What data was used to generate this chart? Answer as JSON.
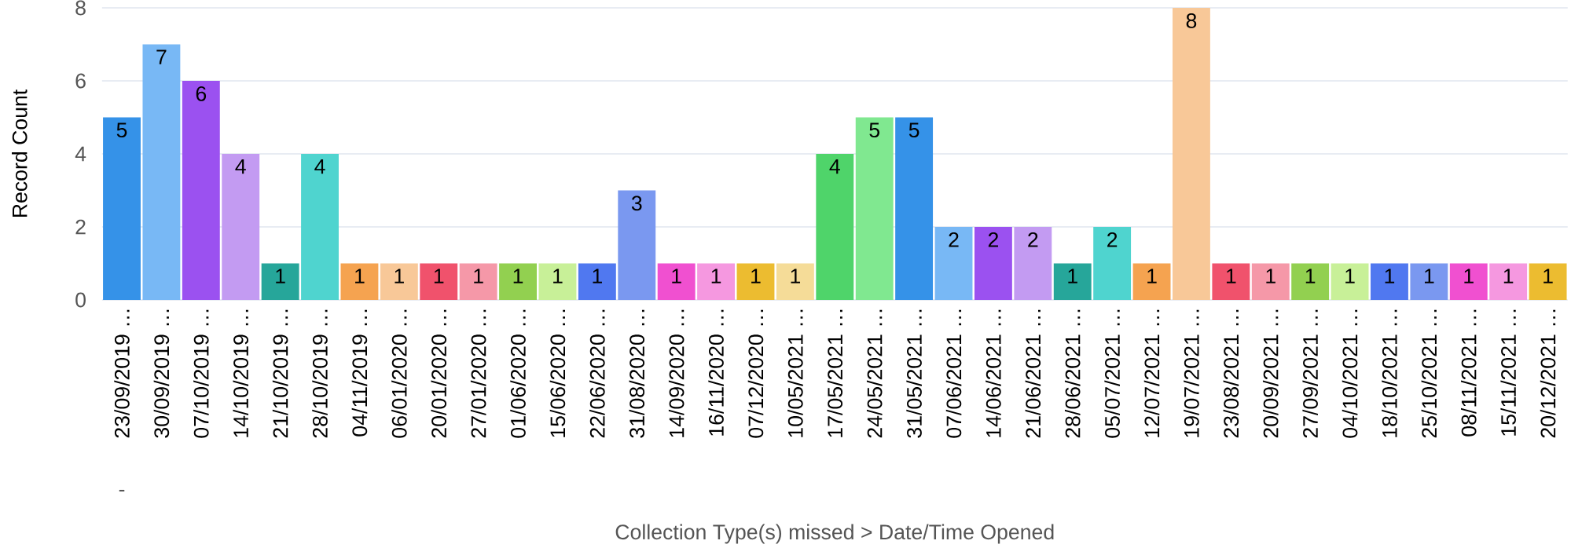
{
  "chart_data": {
    "type": "bar",
    "xlabel": "Collection Type(s) missed  >  Date/Time Opened",
    "ylabel": "Record Count",
    "categories": [
      "23/09/2019 …",
      "30/09/2019 …",
      "07/10/2019 …",
      "14/10/2019 …",
      "21/10/2019 …",
      "28/10/2019 …",
      "04/11/2019 …",
      "06/01/2020 …",
      "20/01/2020 …",
      "27/01/2020 …",
      "01/06/2020 …",
      "15/06/2020 …",
      "22/06/2020 …",
      "31/08/2020 …",
      "14/09/2020 …",
      "16/11/2020 …",
      "07/12/2020 …",
      "10/05/2021 …",
      "17/05/2021 …",
      "24/05/2021 …",
      "31/05/2021 …",
      "07/06/2021 …",
      "14/06/2021 …",
      "21/06/2021 …",
      "28/06/2021 …",
      "05/07/2021 …",
      "12/07/2021 …",
      "19/07/2021 …",
      "23/08/2021 …",
      "20/09/2021 …",
      "27/09/2021 …",
      "04/10/2021 …",
      "18/10/2021 …",
      "25/10/2021 …",
      "08/11/2021 …",
      "15/11/2021 …",
      "20/12/2021 …"
    ],
    "values": [
      5,
      7,
      6,
      4,
      1,
      4,
      1,
      1,
      1,
      1,
      1,
      1,
      1,
      3,
      1,
      1,
      1,
      1,
      4,
      5,
      5,
      2,
      2,
      2,
      1,
      2,
      1,
      8,
      1,
      1,
      1,
      1,
      1,
      1,
      1,
      1,
      1
    ],
    "colors": [
      "#3592e8",
      "#78b8f5",
      "#9b51f0",
      "#c39bf2",
      "#26a69a",
      "#4fd4cf",
      "#f5a350",
      "#f8c898",
      "#f0526c",
      "#f598a8",
      "#92d050",
      "#c8f098",
      "#5078f0",
      "#7a98f0",
      "#f050d0",
      "#f598e0",
      "#ecbc30",
      "#f5dc98",
      "#4fd46a",
      "#80e890",
      "#3592e8",
      "#78b8f5",
      "#9b51f0",
      "#c39bf2",
      "#26a69a",
      "#4fd4cf",
      "#f5a350",
      "#f8c898",
      "#f0526c",
      "#f598a8",
      "#92d050",
      "#c8f098",
      "#5078f0",
      "#7a98f0",
      "#f050d0",
      "#f598e0",
      "#ecbc30"
    ],
    "ylim": [
      0,
      8
    ],
    "yticks": [
      0,
      2,
      4,
      6,
      8
    ],
    "grid": "y",
    "data_labels": true,
    "annotations": [
      "-"
    ]
  }
}
